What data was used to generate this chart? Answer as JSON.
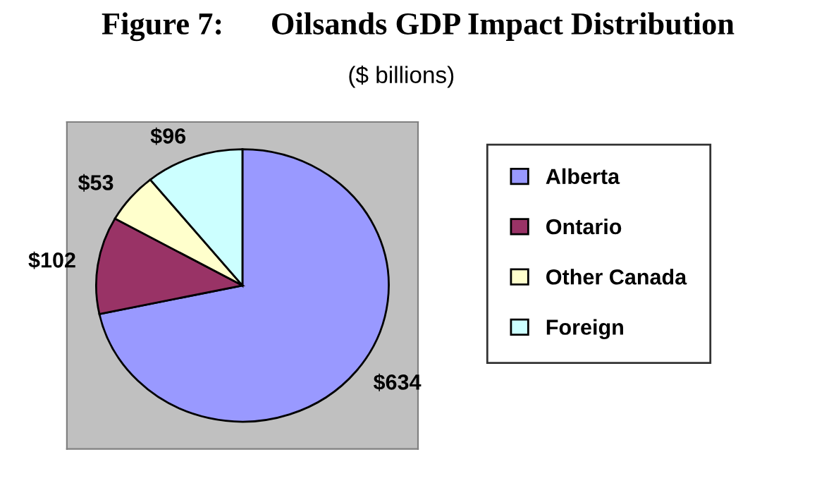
{
  "chart_data": {
    "type": "pie",
    "title": "Figure 7:      Oilsands GDP Impact Distribution",
    "subtitle": "($ billions)",
    "categories": [
      "Alberta",
      "Ontario",
      "Other Canada",
      "Foreign"
    ],
    "values": [
      634,
      102,
      53,
      96
    ],
    "value_labels": [
      "$634",
      "$102",
      "$53",
      "$96"
    ],
    "colors": [
      "#9999ff",
      "#993366",
      "#ffffcc",
      "#ccffff"
    ],
    "legend": "right"
  }
}
